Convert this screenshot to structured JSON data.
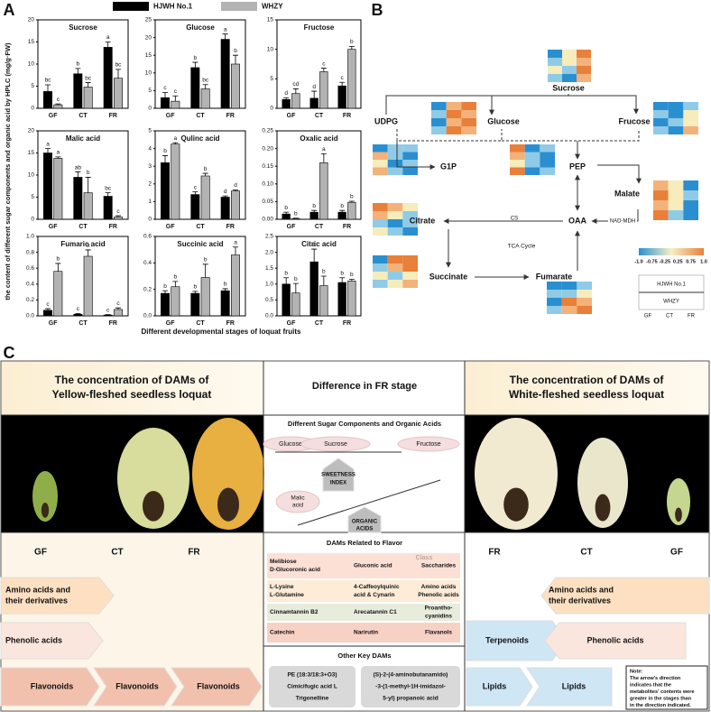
{
  "figure": {
    "panel_labels": [
      "A",
      "B",
      "C"
    ],
    "y_label": "the content of different sugar components and organic acid by HPLC (mg/g·FW)",
    "x_label": "Different  developmental stages of loquat fruits"
  },
  "chart_data": [
    {
      "type": "bar",
      "title": "Sucrose",
      "categories": [
        "GF",
        "CT",
        "FR"
      ],
      "ylim": [
        0,
        20
      ],
      "yticks": [
        0,
        5,
        10,
        15,
        20
      ],
      "series": [
        {
          "name": "HJWH No.1",
          "color": "#000000",
          "values": [
            3.8,
            7.8,
            13.8
          ],
          "errors": [
            1.5,
            1.2,
            1.2
          ],
          "letters": [
            "bc",
            "b",
            "a"
          ]
        },
        {
          "name": "WHZY",
          "color": "#b3b3b3",
          "values": [
            0.8,
            4.8,
            6.8
          ],
          "errors": [
            0.2,
            1,
            2
          ],
          "letters": [
            "c",
            "bc",
            "bc"
          ]
        }
      ]
    },
    {
      "type": "bar",
      "title": "Glucose",
      "categories": [
        "GF",
        "CT",
        "FR"
      ],
      "ylim": [
        0,
        25
      ],
      "yticks": [
        0,
        5,
        10,
        15,
        20,
        25
      ],
      "series": [
        {
          "color": "#000000",
          "values": [
            3,
            11.5,
            19.5
          ],
          "errors": [
            1.5,
            1.5,
            1.5
          ],
          "letters": [
            "c",
            "b",
            "a"
          ]
        },
        {
          "color": "#b3b3b3",
          "values": [
            2,
            5.5,
            12.5
          ],
          "errors": [
            1.5,
            1.2,
            2.5
          ],
          "letters": [
            "c",
            "bc",
            "b"
          ]
        }
      ]
    },
    {
      "type": "bar",
      "title": "Fructose",
      "categories": [
        "GF",
        "CT",
        "FR"
      ],
      "ylim": [
        0,
        15
      ],
      "yticks": [
        0,
        5,
        10,
        15
      ],
      "series": [
        {
          "color": "#000000",
          "values": [
            1.5,
            1.7,
            3.8
          ],
          "errors": [
            0.3,
            1.2,
            0.6
          ],
          "letters": [
            "d",
            "d",
            "c"
          ]
        },
        {
          "color": "#b3b3b3",
          "values": [
            2.5,
            6.2,
            10
          ],
          "errors": [
            0.8,
            0.6,
            0.5
          ],
          "letters": [
            "cd",
            "c",
            "b"
          ]
        }
      ]
    },
    {
      "type": "bar",
      "title": "Malic acid",
      "categories": [
        "GF",
        "CT",
        "FR"
      ],
      "ylim": [
        0,
        20
      ],
      "yticks": [
        0,
        5,
        10,
        15,
        20
      ],
      "series": [
        {
          "color": "#000000",
          "values": [
            15,
            9.5,
            5.2
          ],
          "errors": [
            1,
            1.2,
            0.8
          ],
          "letters": [
            "a",
            "ab",
            "bc"
          ]
        },
        {
          "color": "#b3b3b3",
          "values": [
            13.8,
            6,
            0.5
          ],
          "errors": [
            0.3,
            3.5,
            0.3
          ],
          "letters": [
            "a",
            "b",
            "c"
          ]
        }
      ]
    },
    {
      "type": "bar",
      "title": "Qulinc acid",
      "categories": [
        "GF",
        "CT",
        "FR"
      ],
      "ylim": [
        0,
        5
      ],
      "yticks": [
        0,
        1,
        2,
        3,
        4,
        5
      ],
      "series": [
        {
          "color": "#000000",
          "values": [
            3.2,
            1.4,
            1.25
          ],
          "errors": [
            0.4,
            0.15,
            0.07
          ],
          "letters": [
            "b",
            "c",
            "d"
          ]
        },
        {
          "color": "#b3b3b3",
          "values": [
            4.25,
            2.45,
            1.6
          ],
          "errors": [
            0.08,
            0.15,
            0.06
          ],
          "letters": [
            "a",
            "b",
            "d"
          ]
        }
      ]
    },
    {
      "type": "bar",
      "title": "Oxalic acid",
      "categories": [
        "GF",
        "CT",
        "FR"
      ],
      "ylim": [
        0,
        0.25
      ],
      "yticks": [
        {
          "value": 0,
          "label": "0.00"
        },
        0.05,
        {
          "value": 0.1,
          "label": "0.10"
        },
        0.15,
        {
          "value": 0.2,
          "label": "0.20"
        },
        0.25
      ],
      "series": [
        {
          "color": "#000000",
          "values": [
            0.015,
            0.02,
            0.02
          ],
          "errors": [
            0.005,
            0.005,
            0.005
          ],
          "letters": [
            "b",
            "b",
            "b"
          ]
        },
        {
          "color": "#b3b3b3",
          "values": [
            0.002,
            0.16,
            0.048
          ],
          "errors": [
            0.001,
            0.025,
            0.003
          ],
          "letters": [
            "b",
            "a",
            "b"
          ]
        }
      ]
    },
    {
      "type": "bar",
      "title": "Fumaric acid",
      "categories": [
        "GF",
        "CT",
        "FR"
      ],
      "ylim": [
        0,
        1
      ],
      "yticks": [
        {
          "value": 0,
          "label": "0.0"
        },
        0.2,
        0.4,
        0.6,
        0.8,
        {
          "value": 1,
          "label": "1.0"
        }
      ],
      "series": [
        {
          "color": "#000000",
          "values": [
            0.07,
            0.02,
            0.01
          ],
          "errors": [
            0.02,
            0.01,
            0.005
          ],
          "letters": [
            "c",
            "c",
            "c"
          ]
        },
        {
          "color": "#b3b3b3",
          "values": [
            0.56,
            0.75,
            0.08
          ],
          "errors": [
            0.1,
            0.08,
            0.02
          ],
          "letters": [
            "b",
            "a",
            "c"
          ]
        }
      ]
    },
    {
      "type": "bar",
      "title": "Succinic acid",
      "categories": [
        "GF",
        "CT",
        "FR"
      ],
      "ylim": [
        0,
        0.6
      ],
      "yticks": [
        {
          "value": 0,
          "label": "0.0"
        },
        0.2,
        0.4,
        0.6
      ],
      "series": [
        {
          "color": "#000000",
          "values": [
            0.17,
            0.17,
            0.19
          ],
          "errors": [
            0.02,
            0.015,
            0.015
          ],
          "letters": [
            "b",
            "b",
            "b"
          ]
        },
        {
          "color": "#b3b3b3",
          "values": [
            0.22,
            0.29,
            0.46
          ],
          "errors": [
            0.04,
            0.1,
            0.06
          ],
          "letters": [
            "b",
            "b",
            "a"
          ]
        }
      ]
    },
    {
      "type": "bar",
      "title": "Citric acid",
      "categories": [
        "GF",
        "CT",
        "FR"
      ],
      "ylim": [
        0,
        2.5
      ],
      "yticks": [
        {
          "value": 0,
          "label": "0.0"
        },
        0.5,
        {
          "value": 1,
          "label": "1.0"
        },
        1.5,
        {
          "value": 2,
          "label": "2.0"
        },
        2.5
      ],
      "series": [
        {
          "color": "#000000",
          "values": [
            1,
            1.7,
            1.05
          ],
          "errors": [
            0.2,
            0.4,
            0.15
          ],
          "letters": [
            "b",
            "a",
            "b"
          ]
        },
        {
          "color": "#b3b3b3",
          "values": [
            0.72,
            0.95,
            1.1
          ],
          "errors": [
            0.3,
            0.3,
            0.05
          ],
          "letters": [
            "b",
            "b",
            "b"
          ]
        }
      ]
    }
  ],
  "pathway": {
    "nodes": [
      "Sucrose",
      "UDPG",
      "Glucose",
      "Frucose",
      "G1P",
      "PEP",
      "Malate",
      "Citrate",
      "OAA",
      "Succinate",
      "Fumarate"
    ],
    "enzymes": [
      "NAD-MDH",
      "CS"
    ],
    "cycle": "TCA Cycle",
    "colorbar_ticks": [
      "-1.0",
      "-0.75",
      "-0.25",
      "0.25",
      "0.75",
      "1.0"
    ],
    "key": {
      "rows": [
        "HJWH No.1",
        "WHZY"
      ],
      "columns": [
        "GF",
        "CT",
        "FR"
      ]
    }
  },
  "panel_c": {
    "header_left": [
      "The concentration of DAMs of",
      "Yellow-fleshed seedless loquat"
    ],
    "header_middle": "Difference in FR stage",
    "header_right": [
      "The concentration of DAMs of",
      "White-fleshed seedless loquat"
    ],
    "sugar_box": {
      "title": "Different Sugar Components and Organic Acids",
      "sugars": [
        "Glucose",
        "Sucrose",
        "Fructose"
      ],
      "sweetness": [
        "SWEETNESS",
        "INDEX"
      ],
      "acid": [
        "Malic",
        "acid"
      ],
      "acids": [
        "ORGANIC",
        "ACIDS"
      ]
    },
    "left": {
      "stages": [
        "GF",
        "CT",
        "FR"
      ],
      "amino": [
        "Amino acids and",
        "their derivatives"
      ],
      "phenolic": "Phenolic acids",
      "flavonoids": [
        "Flavonoids",
        "Flavonoids",
        "Flavonoids"
      ]
    },
    "flavor": {
      "title": "DAMs Related to Flavor",
      "class_header": "Class",
      "rows": [
        {
          "left": [
            "Melibiose",
            "D-Glucoronic acid"
          ],
          "middle": [
            "Gluconic acid"
          ],
          "classes": [
            "Saccharides"
          ]
        },
        {
          "left": [
            "L-Lysine",
            "L-Glutamine"
          ],
          "middle": [
            "4-Caffeoylquinic",
            "acid & Cynarin"
          ],
          "classes": [
            "Amino acids",
            "Phenolic acids"
          ]
        },
        {
          "left": [
            "Cinnamtannin B2"
          ],
          "middle": [
            "Arecatannin C1"
          ],
          "classes": [
            "Proantho-",
            "cyanidins"
          ]
        },
        {
          "left": [
            "Catechin"
          ],
          "middle": [
            "Narirutin"
          ],
          "classes": [
            "Flavanols"
          ]
        }
      ]
    },
    "other": {
      "title": "Other Key DAMs",
      "left": [
        "PE (18:3/18:3+O3)",
        "Cimicifugic acid L",
        "Trigonelline"
      ],
      "right": [
        "(S)-2-(4-aminobutanamido)",
        "-3-(1-methyl-1H-imidazol-",
        "5-yl) propanoic acid"
      ]
    },
    "right": {
      "stages": [
        "FR",
        "CT",
        "GF"
      ],
      "amino": [
        "Amino acids and",
        "their derivatives"
      ],
      "terpenoids": "Terpenoids",
      "phenolic": "Phenolic acids",
      "lipids": [
        "Lipids",
        "Lipids"
      ],
      "note": [
        "Note:",
        "The arrow's direction",
        "indicates that the",
        "metabolites' contents were",
        "greater in the stages than",
        "in the direction indicated."
      ]
    }
  }
}
